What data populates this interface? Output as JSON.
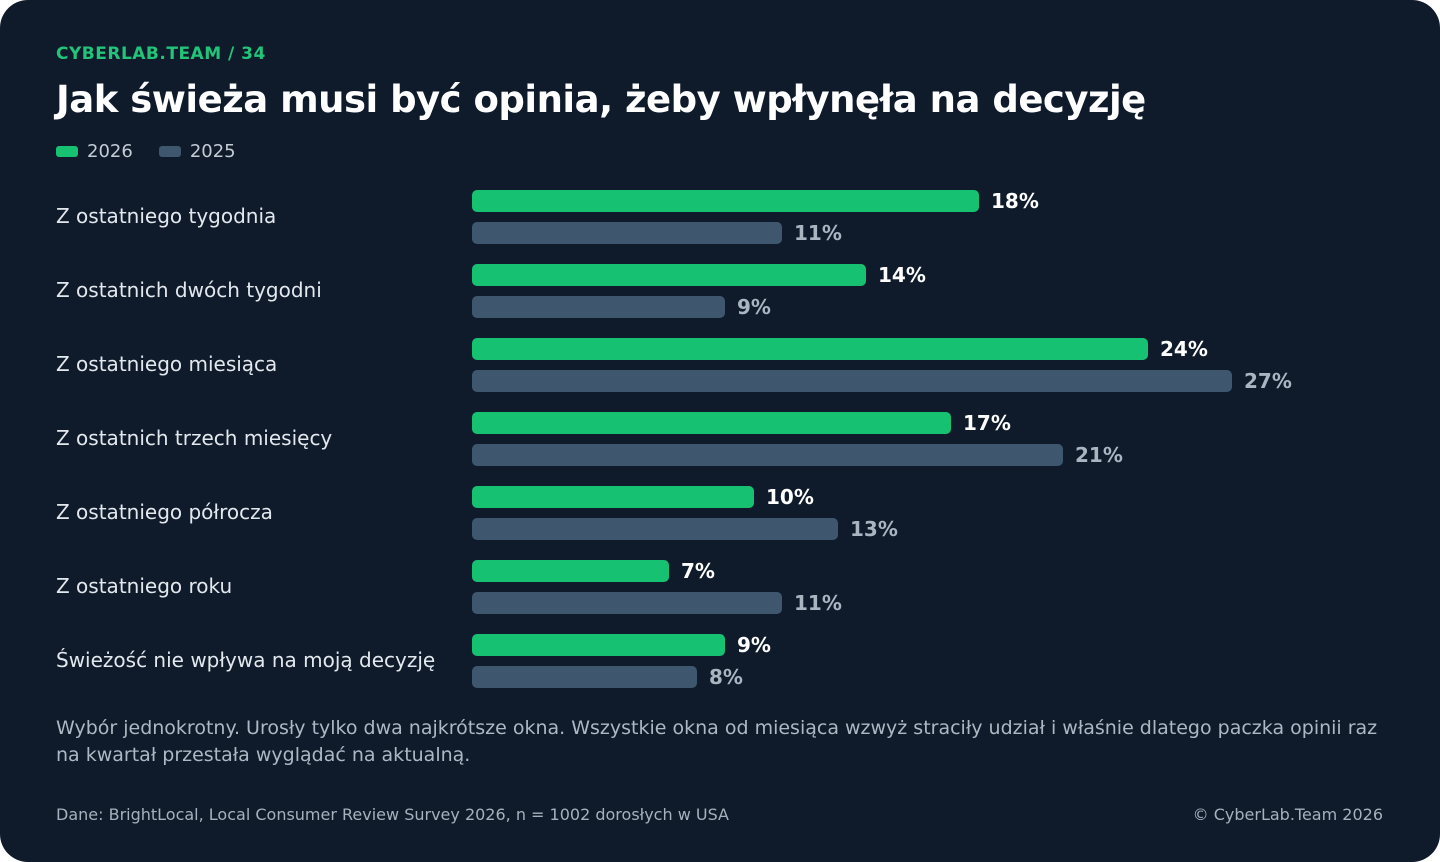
{
  "header": {
    "eyebrow": "CYBERLAB.TEAM / 34",
    "title": "Jak świeża musi być opinia, żeby wpłynęła na decyzję"
  },
  "legend": [
    {
      "label": "2026",
      "color": "#16c172"
    },
    {
      "label": "2025",
      "color": "#3e566e"
    }
  ],
  "chart_data": {
    "type": "bar",
    "orientation": "horizontal",
    "unit": "%",
    "categories": [
      "Z ostatniego tygodnia",
      "Z ostatnich dwóch tygodni",
      "Z ostatniego miesiąca",
      "Z ostatnich trzech miesięcy",
      "Z ostatniego półrocza",
      "Z ostatniego roku",
      "Świeżość nie wpływa na moją decyzję"
    ],
    "series": [
      {
        "name": "2026",
        "color": "#16c172",
        "values": [
          18,
          14,
          24,
          17,
          10,
          7,
          9
        ]
      },
      {
        "name": "2025",
        "color": "#3e566e",
        "values": [
          11,
          9,
          27,
          21,
          13,
          11,
          8
        ]
      }
    ],
    "grid": false,
    "legend_position": "top-left"
  },
  "footer": {
    "note": "Wybór jednokrotny. Urosły tylko dwa najkrótsze okna. Wszystkie okna od miesiąca wzwyż straciły udział i właśnie dlatego paczka opinii raz na kwartał przestała wyglądać na aktualną.",
    "source": "Dane: BrightLocal, Local Consumer Review Survey 2026, n = 1002 dorosłych w USA",
    "copyright": "© CyberLab.Team  2026"
  }
}
